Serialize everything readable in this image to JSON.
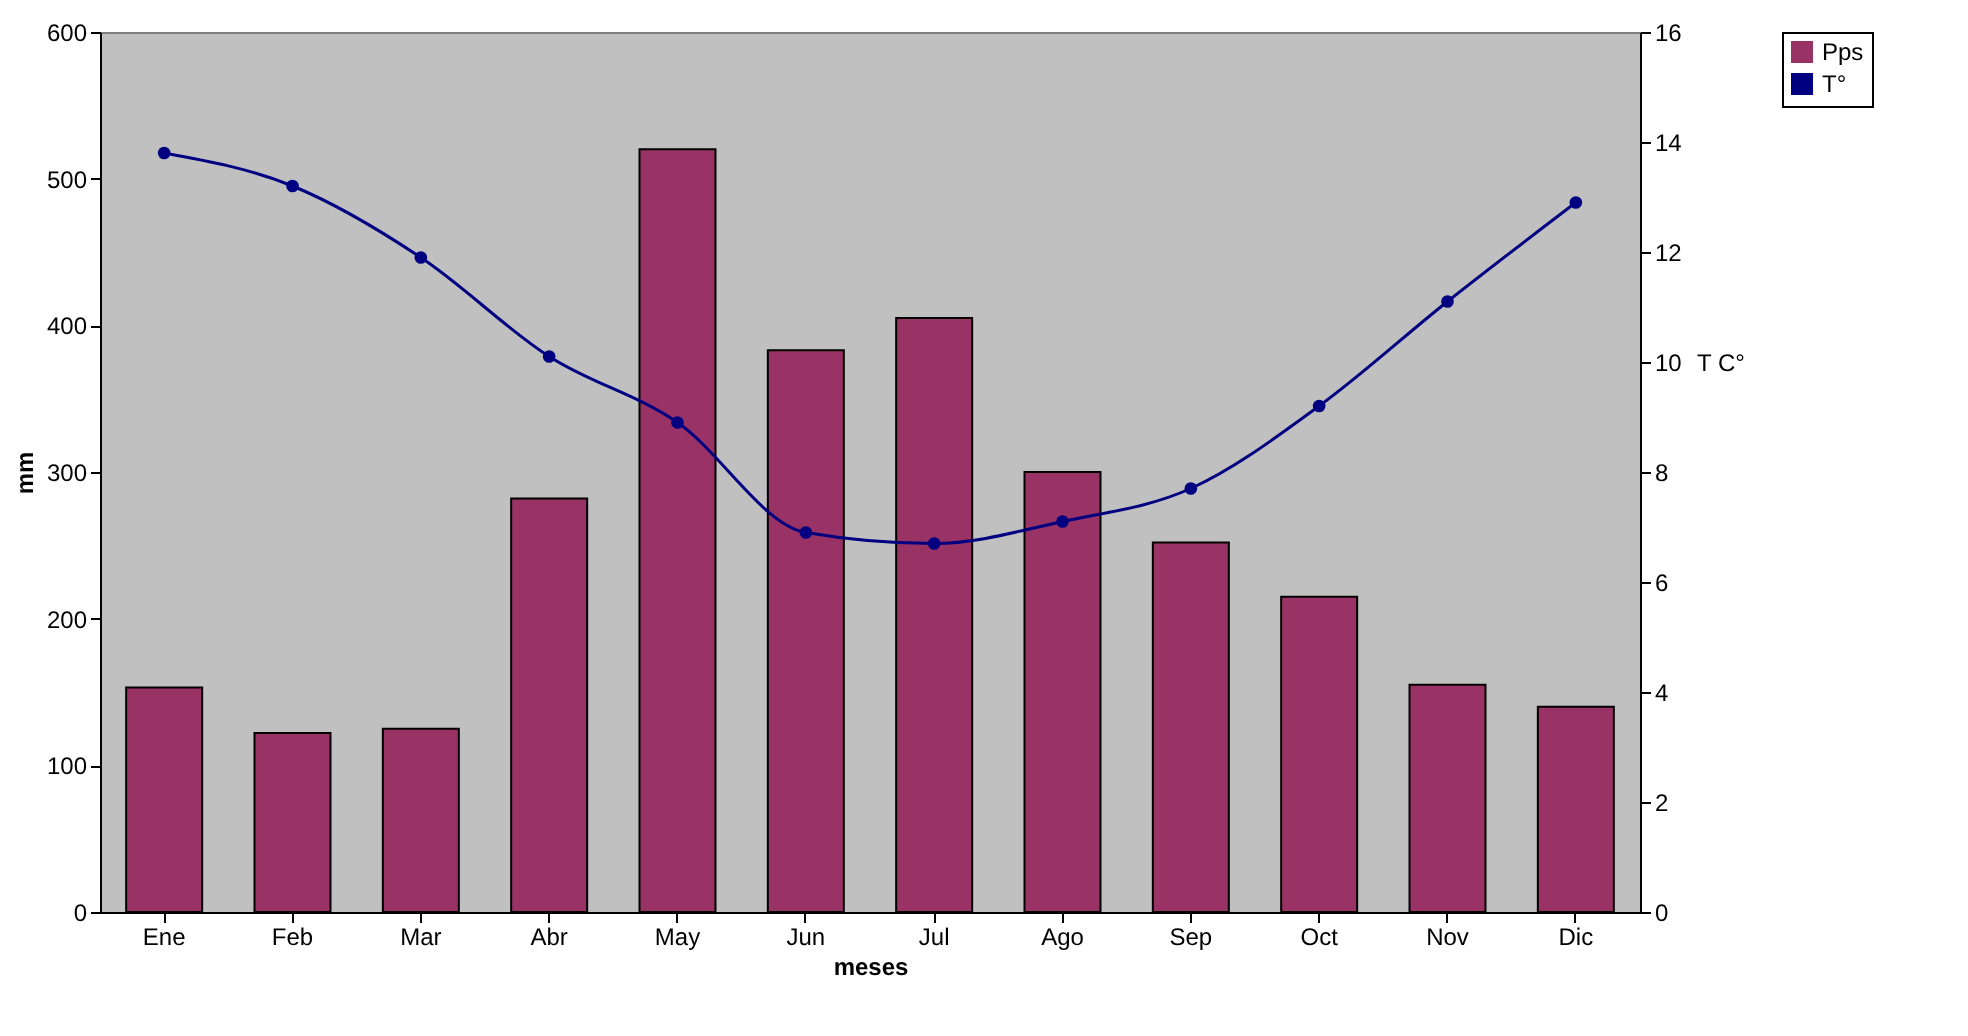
{
  "chart_data": {
    "type": "bar",
    "xlabel": "meses",
    "ylabel": "mm",
    "y2label": "T C°",
    "categories": [
      "Ene",
      "Feb",
      "Mar",
      "Abr",
      "May",
      "Jun",
      "Jul",
      "Ago",
      "Sep",
      "Oct",
      "Nov",
      "Dic"
    ],
    "series": [
      {
        "name": "Pps",
        "color": "#993366",
        "values": [
          153,
          122,
          125,
          282,
          520,
          383,
          405,
          300,
          252,
          215,
          155,
          140
        ]
      },
      {
        "name": "T°",
        "type": "line",
        "axis": "y2",
        "color": "#000080",
        "marker": "circle",
        "values": [
          13.8,
          13.2,
          11.9,
          10.1,
          8.9,
          6.9,
          6.7,
          7.1,
          7.7,
          9.2,
          11.1,
          12.9
        ]
      }
    ],
    "ylim": [
      0,
      600
    ],
    "yticks": [
      0,
      100,
      200,
      300,
      400,
      500,
      600
    ],
    "y2lim": [
      0,
      16
    ],
    "y2ticks": [
      0,
      2,
      4,
      6,
      8,
      10,
      12,
      14,
      16
    ],
    "grid": false,
    "legend": "right"
  }
}
